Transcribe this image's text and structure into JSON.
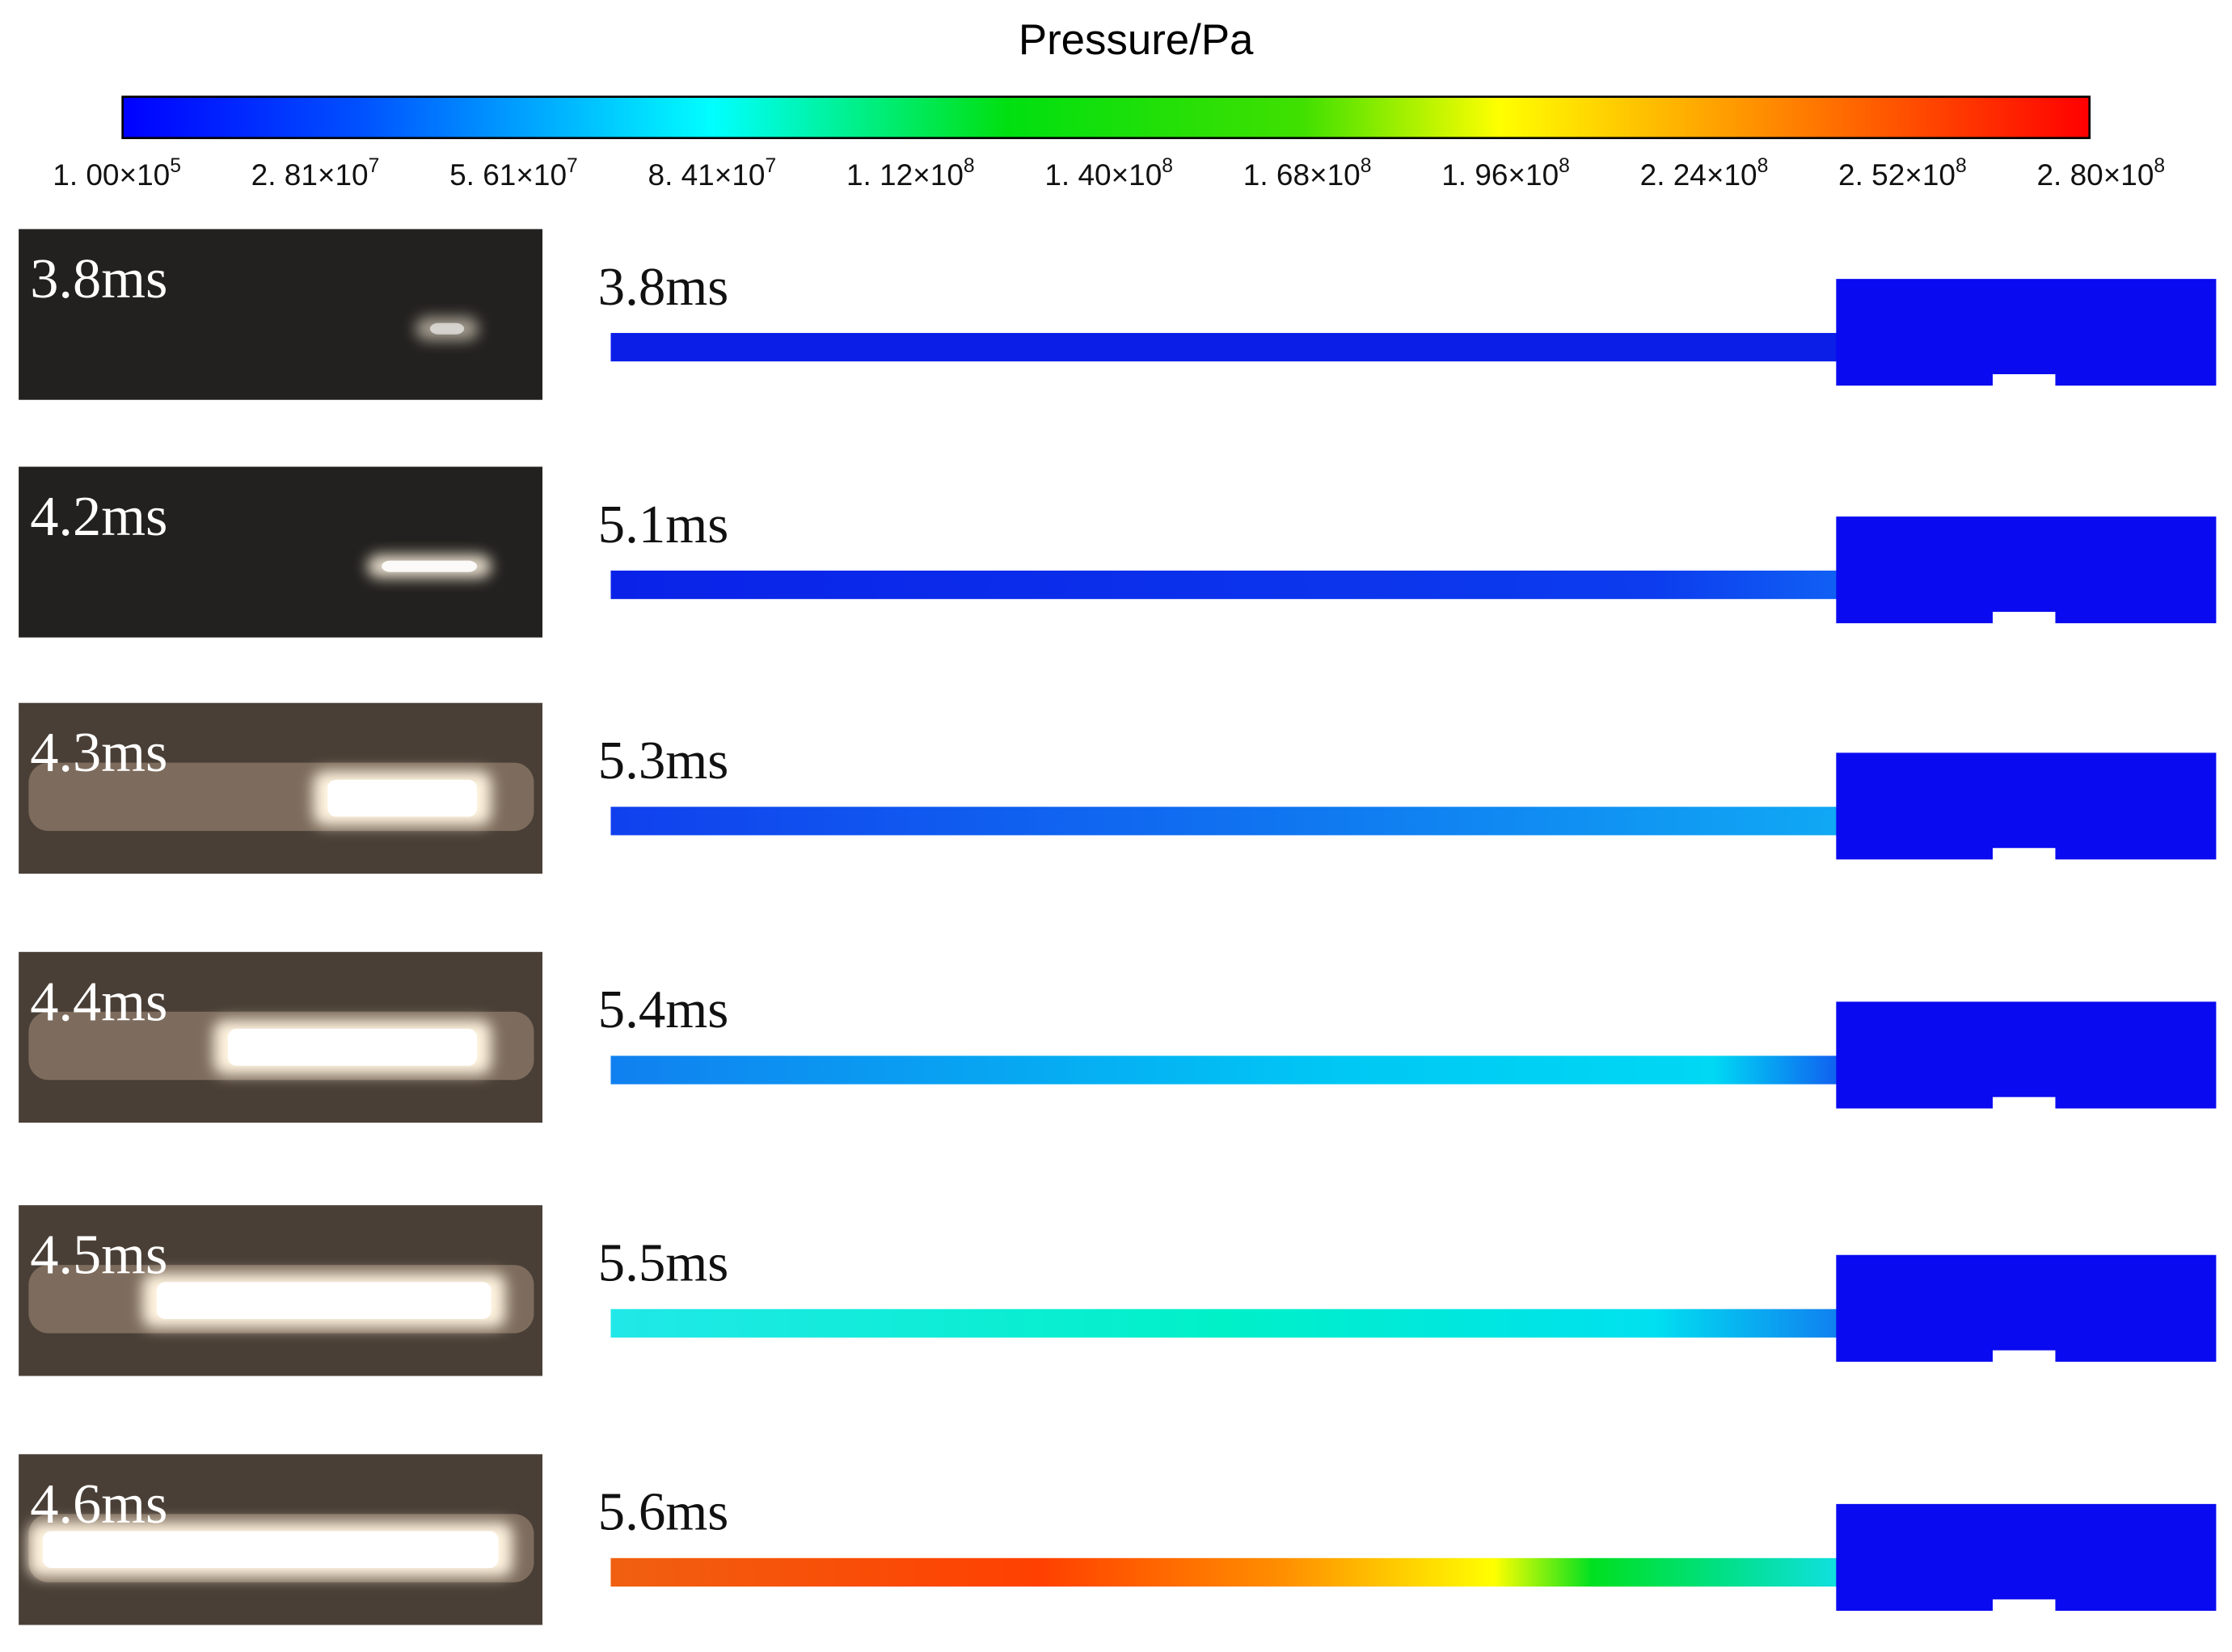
{
  "colorbar": {
    "title": "Pressure/Pa",
    "ticks": [
      {
        "base": "1. 00×10",
        "exp": "5"
      },
      {
        "base": "2. 81×10",
        "exp": "7"
      },
      {
        "base": "5. 61×10",
        "exp": "7"
      },
      {
        "base": "8. 41×10",
        "exp": "7"
      },
      {
        "base": "1. 12×10",
        "exp": "8"
      },
      {
        "base": "1. 40×10",
        "exp": "8"
      },
      {
        "base": "1. 68×10",
        "exp": "8"
      },
      {
        "base": "1. 96×10",
        "exp": "8"
      },
      {
        "base": "2. 24×10",
        "exp": "8"
      },
      {
        "base": "2. 52×10",
        "exp": "8"
      },
      {
        "base": "2. 80×10",
        "exp": "8"
      }
    ]
  },
  "experiment": {
    "frames": [
      "3.8ms",
      "4.2ms",
      "4.3ms",
      "4.4ms",
      "4.5ms",
      "4.6ms"
    ]
  },
  "simulation": {
    "frames": [
      "3.8ms",
      "5.1ms",
      "5.3ms",
      "5.4ms",
      "5.5ms",
      "5.6ms"
    ]
  }
}
